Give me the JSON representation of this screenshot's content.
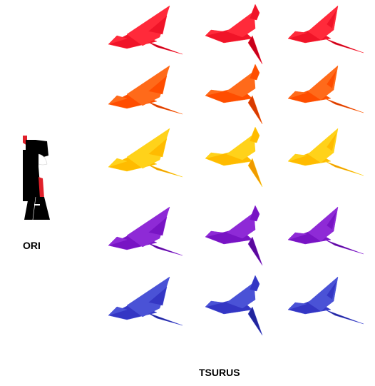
{
  "labels": {
    "character": "ORI",
    "group": "TSURUS"
  },
  "character": {
    "name_icon": "ori-paper-doll-icon",
    "colors": {
      "body": "#000000",
      "accent": "#e0202a",
      "face": "#ffffff"
    }
  },
  "cranes": {
    "icon": "origami-crane-icon",
    "rows": [
      {
        "color": "red",
        "colors": {
          "light": "#ff2a3a",
          "mid": "#f01428",
          "dark": "#c8001a"
        }
      },
      {
        "color": "orange",
        "colors": {
          "light": "#ff6a1a",
          "mid": "#ff4d00",
          "dark": "#d83a00"
        }
      },
      {
        "color": "yellow",
        "colors": {
          "light": "#ffd21a",
          "mid": "#ffbb00",
          "dark": "#f09a00"
        }
      },
      {
        "color": "purple",
        "colors": {
          "light": "#8e2ad6",
          "mid": "#7814c4",
          "dark": "#5a0a9c"
        }
      },
      {
        "color": "blue",
        "colors": {
          "light": "#4a52d6",
          "mid": "#3436c4",
          "dark": "#22259c"
        }
      }
    ],
    "columns_per_row": 3
  }
}
